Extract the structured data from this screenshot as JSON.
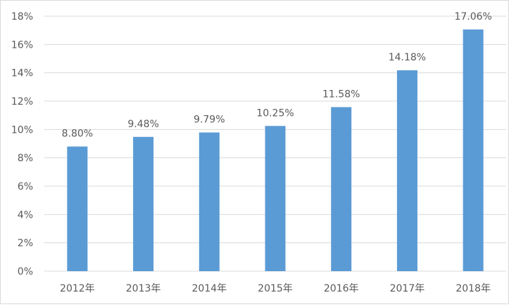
{
  "chart_data": {
    "type": "bar",
    "categories": [
      "2012年",
      "2013年",
      "2014年",
      "2015年",
      "2016年",
      "2017年",
      "2018年"
    ],
    "values": [
      8.8,
      9.48,
      9.79,
      10.25,
      11.58,
      14.18,
      17.06
    ],
    "data_labels": [
      "8.80%",
      "9.48%",
      "9.79%",
      "10.25%",
      "11.58%",
      "14.18%",
      "17.06%"
    ],
    "y_ticks": [
      0,
      2,
      4,
      6,
      8,
      10,
      12,
      14,
      16,
      18
    ],
    "y_tick_labels": [
      "0%",
      "2%",
      "4%",
      "6%",
      "8%",
      "10%",
      "12%",
      "14%",
      "16%",
      "18%"
    ],
    "ylim": [
      0,
      18
    ],
    "grid": true,
    "legend": false,
    "bar_color": "#5b9bd5",
    "grid_color": "#d9d9d9",
    "text_color": "#595959"
  }
}
